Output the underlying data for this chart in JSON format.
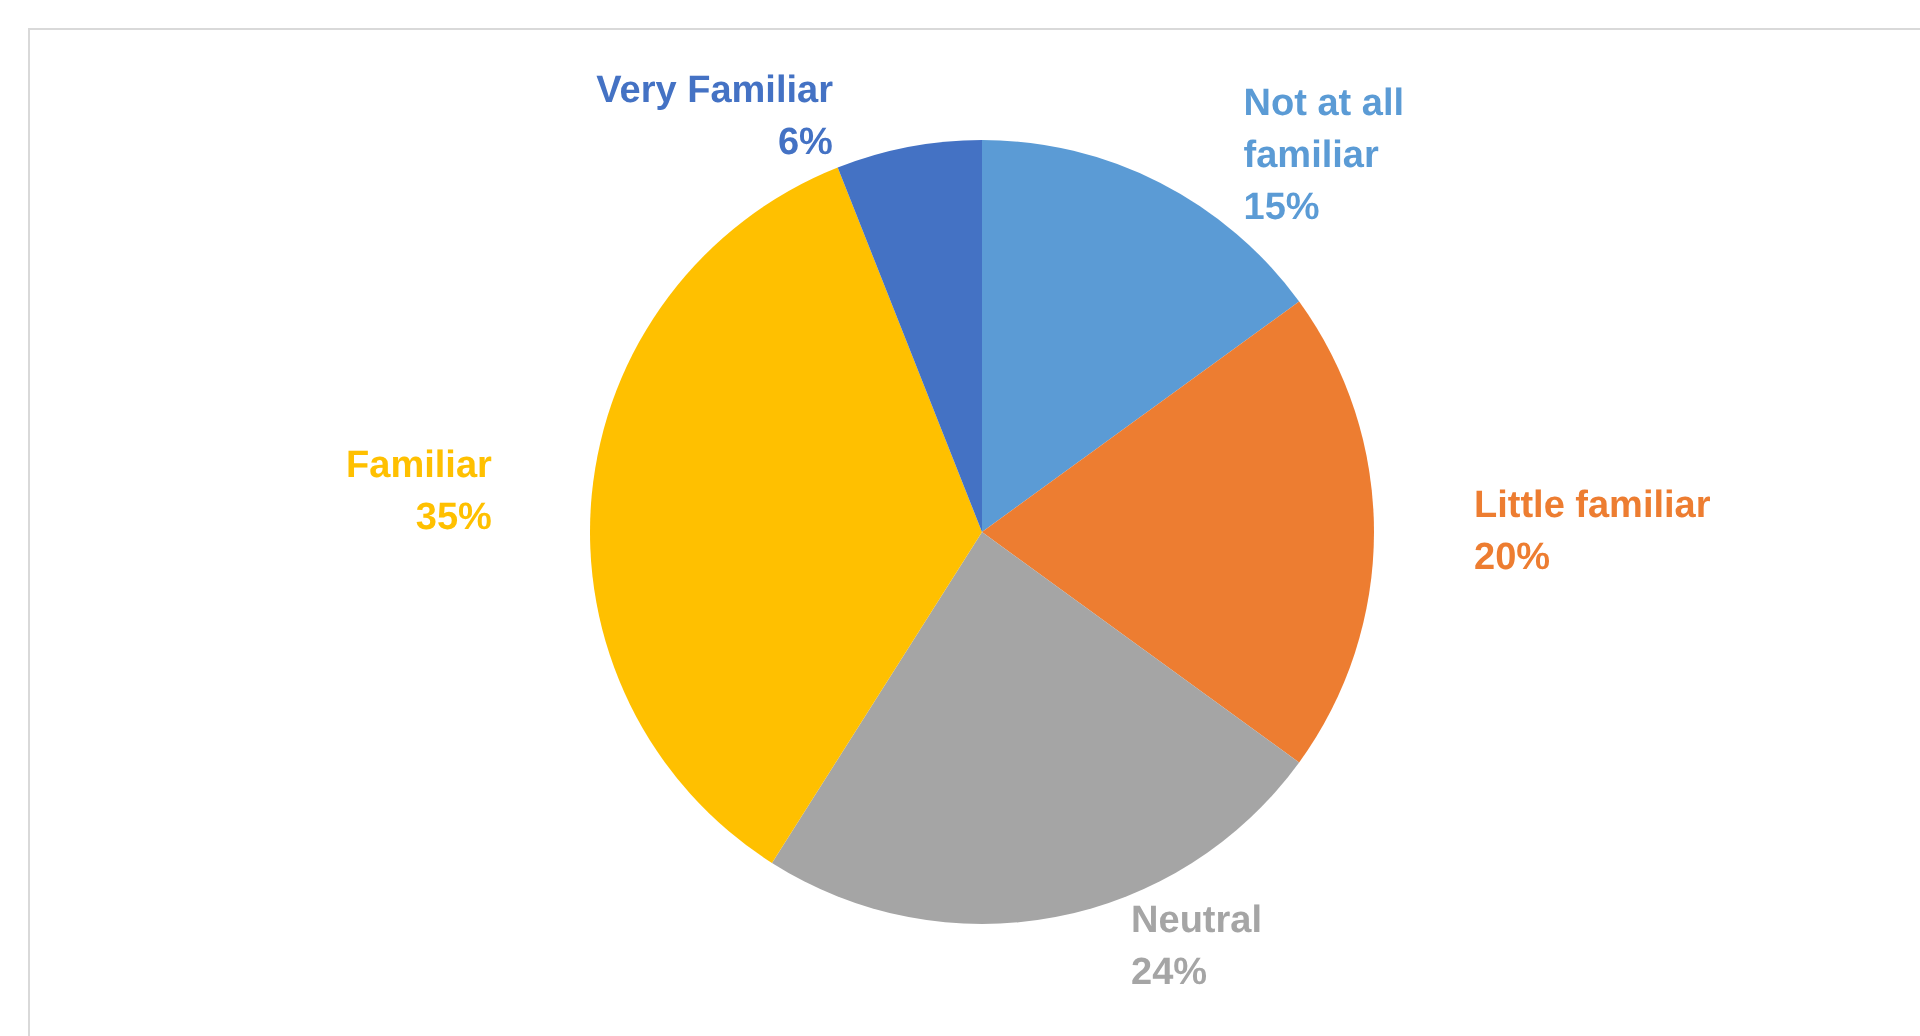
{
  "chart_data": {
    "type": "pie",
    "categories": [
      "Not at all familiar",
      "Little familiar",
      "Neutral",
      "Familiar",
      "Very Familiar"
    ],
    "values": [
      15,
      20,
      24,
      35,
      6
    ],
    "colors": [
      "#5b9bd5",
      "#ed7d31",
      "#a5a5a5",
      "#ffc000",
      "#4472c4"
    ],
    "value_labels": [
      "15%",
      "20%",
      "24%",
      "35%",
      "6%"
    ]
  }
}
